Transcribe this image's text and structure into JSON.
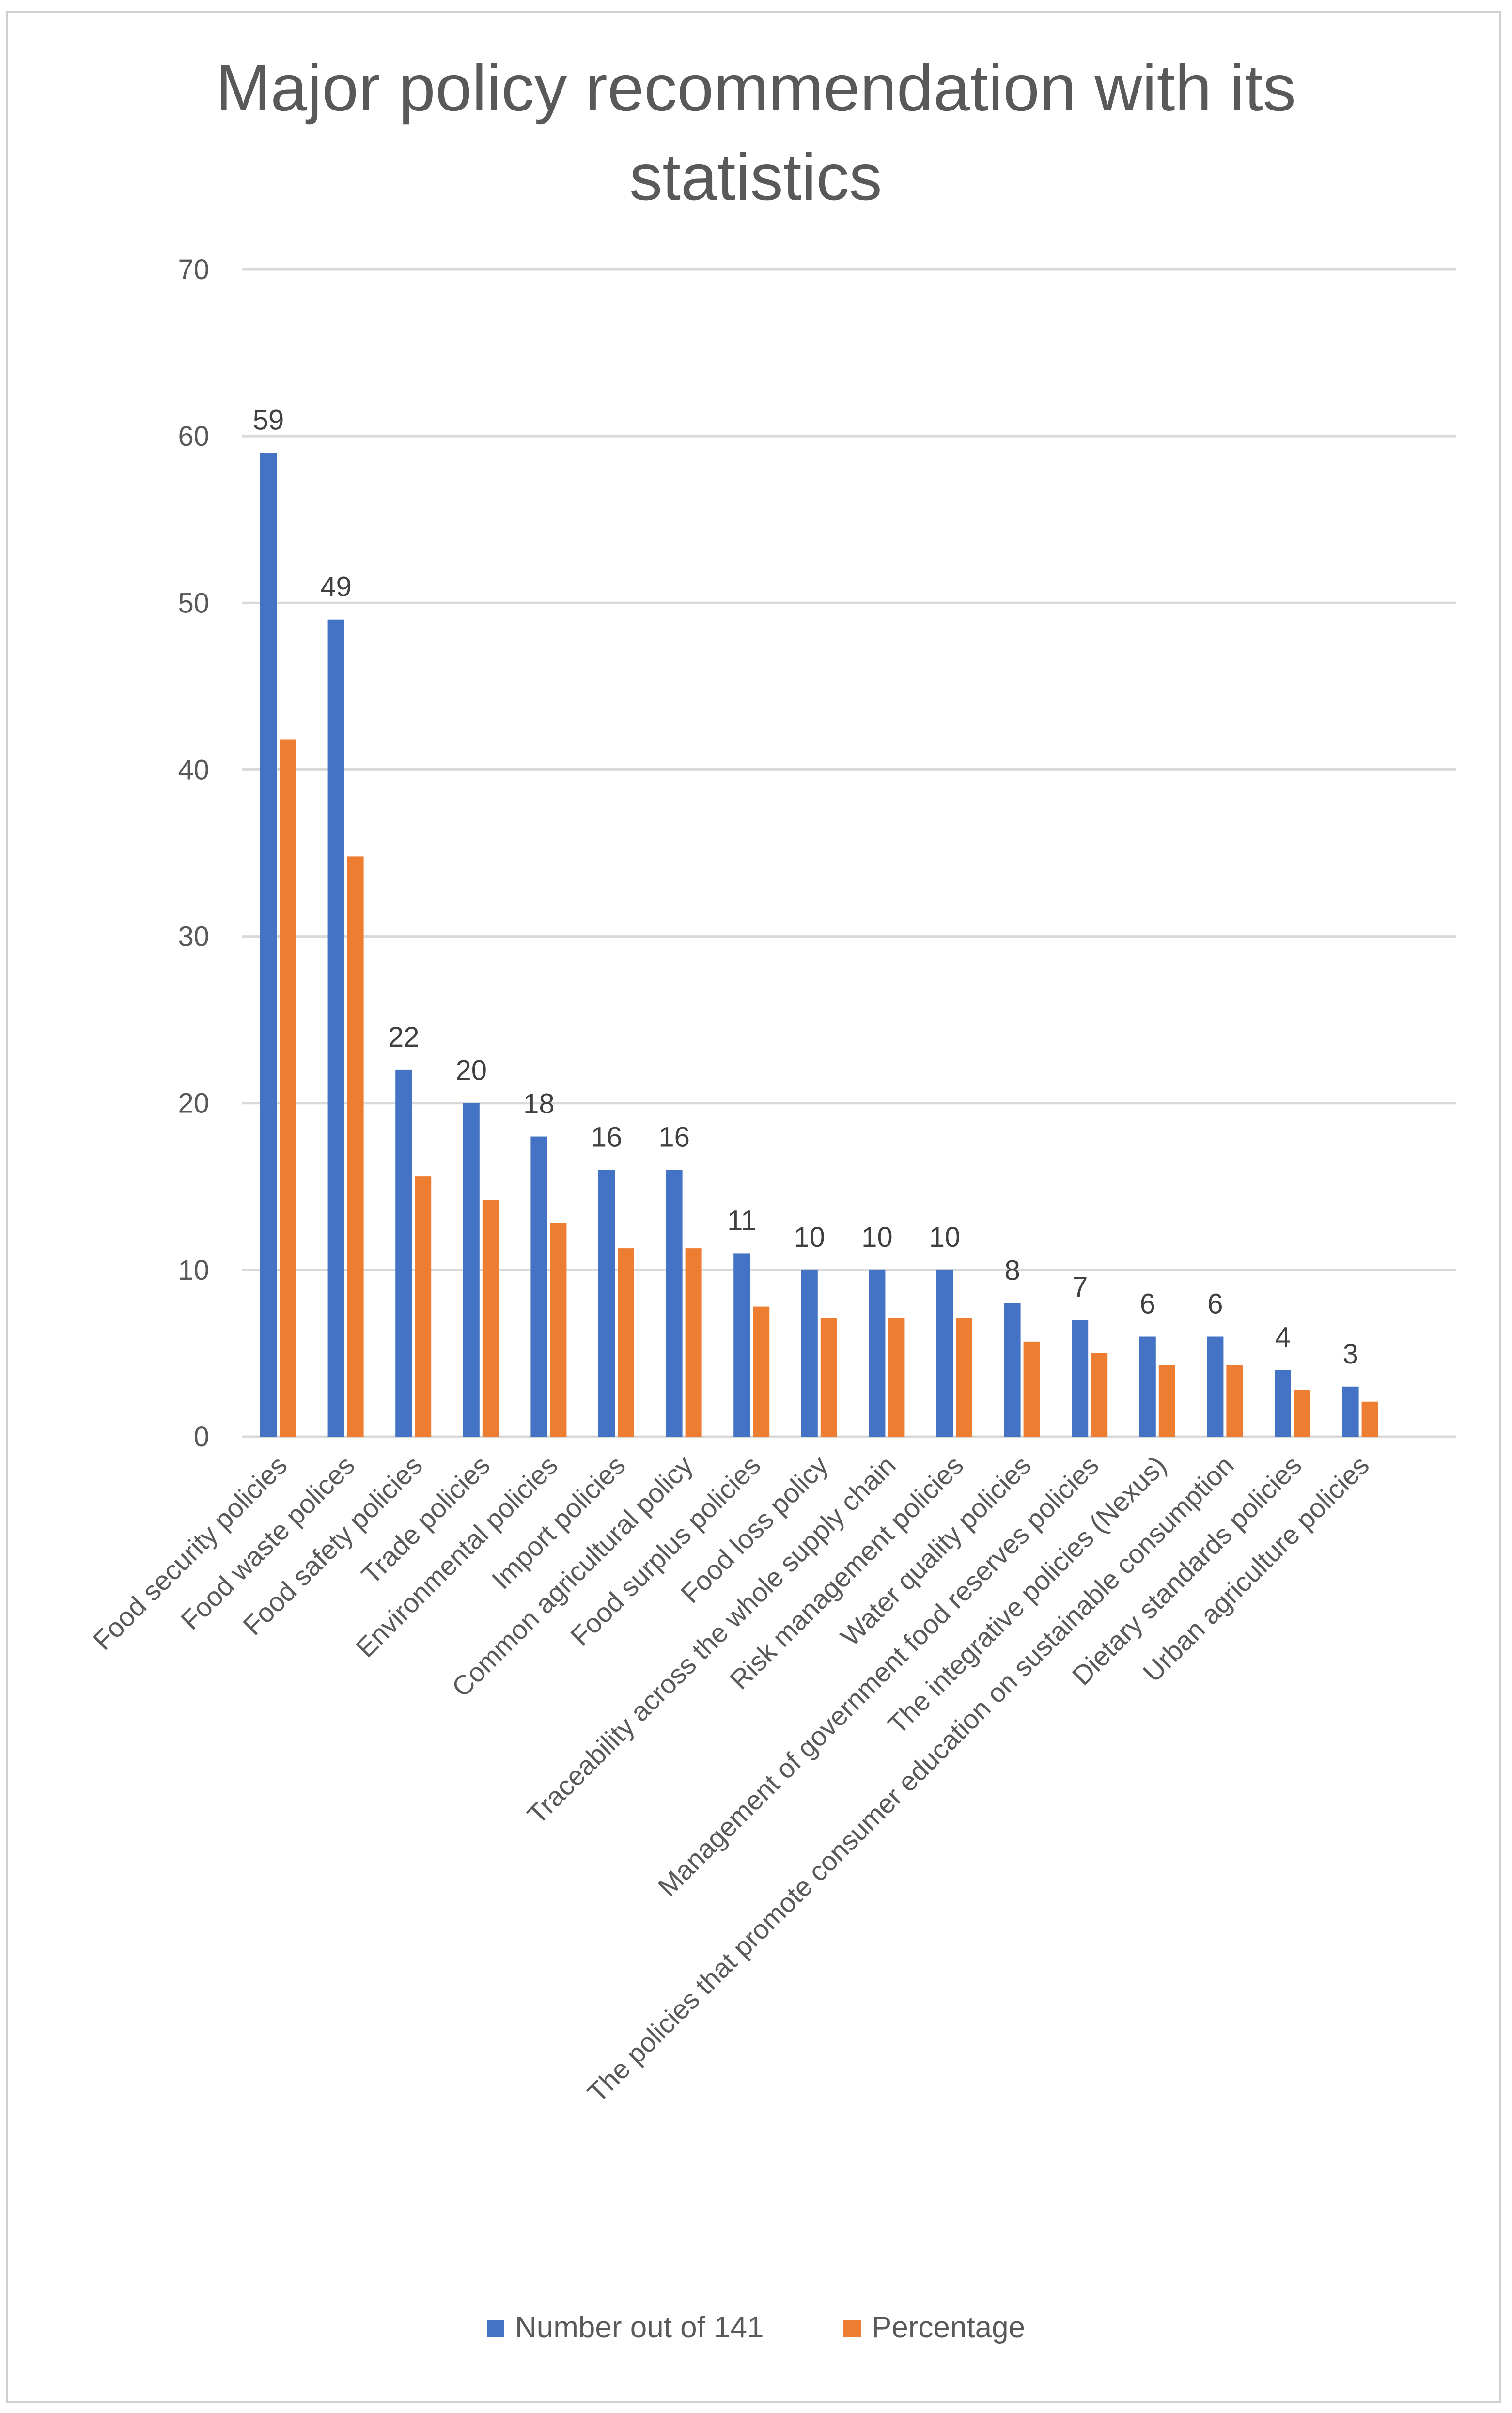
{
  "chart_data": {
    "type": "bar",
    "title_lines": [
      "Major policy recommendation with its",
      "statistics"
    ],
    "categories": [
      "Food security policies",
      "Food waste polices",
      "Food safety policies",
      "Trade policies",
      "Environmental policies",
      "Import policies",
      "Common agricultural policy",
      "Food surplus policies",
      "Food loss policy",
      "Traceability across the whole supply chain",
      "Risk management policies",
      "Water quality policies",
      "Management of government food reserves policies",
      "The integrative policies (Nexus)",
      "The policies that promote consumer education on sustainable consumption",
      "Dietary standards policies",
      "Urban agriculture policies"
    ],
    "series": [
      {
        "name": "Number out of 141",
        "color": "#4472C4",
        "values": [
          59,
          49,
          22,
          20,
          18,
          16,
          16,
          11,
          10,
          10,
          10,
          8,
          7,
          6,
          6,
          4,
          3
        ],
        "data_labels": [
          "59",
          "49",
          "22",
          "20",
          "18",
          "16",
          "16",
          "11",
          "10",
          "10",
          "10",
          "8",
          "7",
          "6",
          "6",
          "4",
          "3"
        ]
      },
      {
        "name": "Percentage",
        "color": "#ED7D31",
        "values": [
          41.8,
          34.8,
          15.6,
          14.2,
          12.8,
          11.3,
          11.3,
          7.8,
          7.1,
          7.1,
          7.1,
          5.7,
          5.0,
          4.3,
          4.3,
          2.8,
          2.1
        ]
      }
    ],
    "ylim": [
      0,
      70
    ],
    "yticks": [
      "0",
      "10",
      "20",
      "30",
      "40",
      "50",
      "60",
      "70"
    ],
    "grid": true,
    "legend_position": "bottom",
    "xlabel": "",
    "ylabel": ""
  }
}
